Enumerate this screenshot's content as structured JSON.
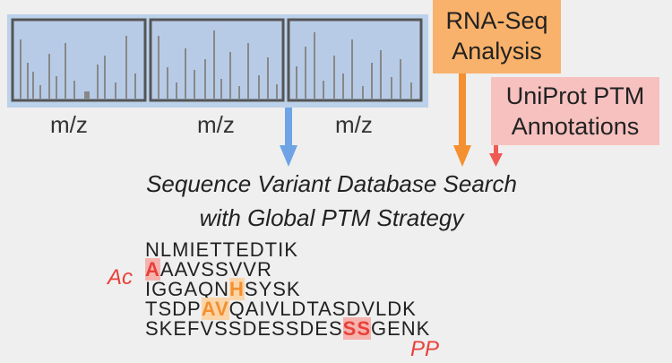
{
  "spectra": {
    "axis_labels": [
      "m/z",
      "m/z",
      "m/z"
    ]
  },
  "sources": [
    {
      "lines": [
        "RNA-Seq",
        "Analysis"
      ],
      "color": "#f9b26b",
      "arrow_color": "#f4902f"
    },
    {
      "lines": [
        "UniProt PTM",
        "Annotations"
      ],
      "color": "#f6c1bf",
      "arrow_color": "#ef5a52"
    }
  ],
  "spectra_arrow_color": "#6ea4e6",
  "title": [
    "Sequence Variant Database Search",
    "with Global PTM Strategy"
  ],
  "sequences": [
    [
      {
        "text": "NLMIETTEDTIK"
      }
    ],
    [
      {
        "text": "A",
        "color": "#e8403a",
        "background": "#f6b3ae"
      },
      {
        "text": "AAVSSVVR"
      }
    ],
    [
      {
        "text": "IGGAQN"
      },
      {
        "text": "H",
        "color": "#f4902f",
        "background": "#fbd5a8"
      },
      {
        "text": "SYSK"
      }
    ],
    [
      {
        "text": "TSDP"
      },
      {
        "text": "AV",
        "color": "#f4902f",
        "background": "#fbd5a8"
      },
      {
        "text": "QAIVLDTASDVLDK"
      }
    ],
    [
      {
        "text": "SKEFVSSDESSDES"
      },
      {
        "text": "SS",
        "color": "#e8403a",
        "background": "#f6b3ae"
      },
      {
        "text": "GENK"
      }
    ]
  ],
  "modifications": [
    "Ac",
    "PP"
  ]
}
